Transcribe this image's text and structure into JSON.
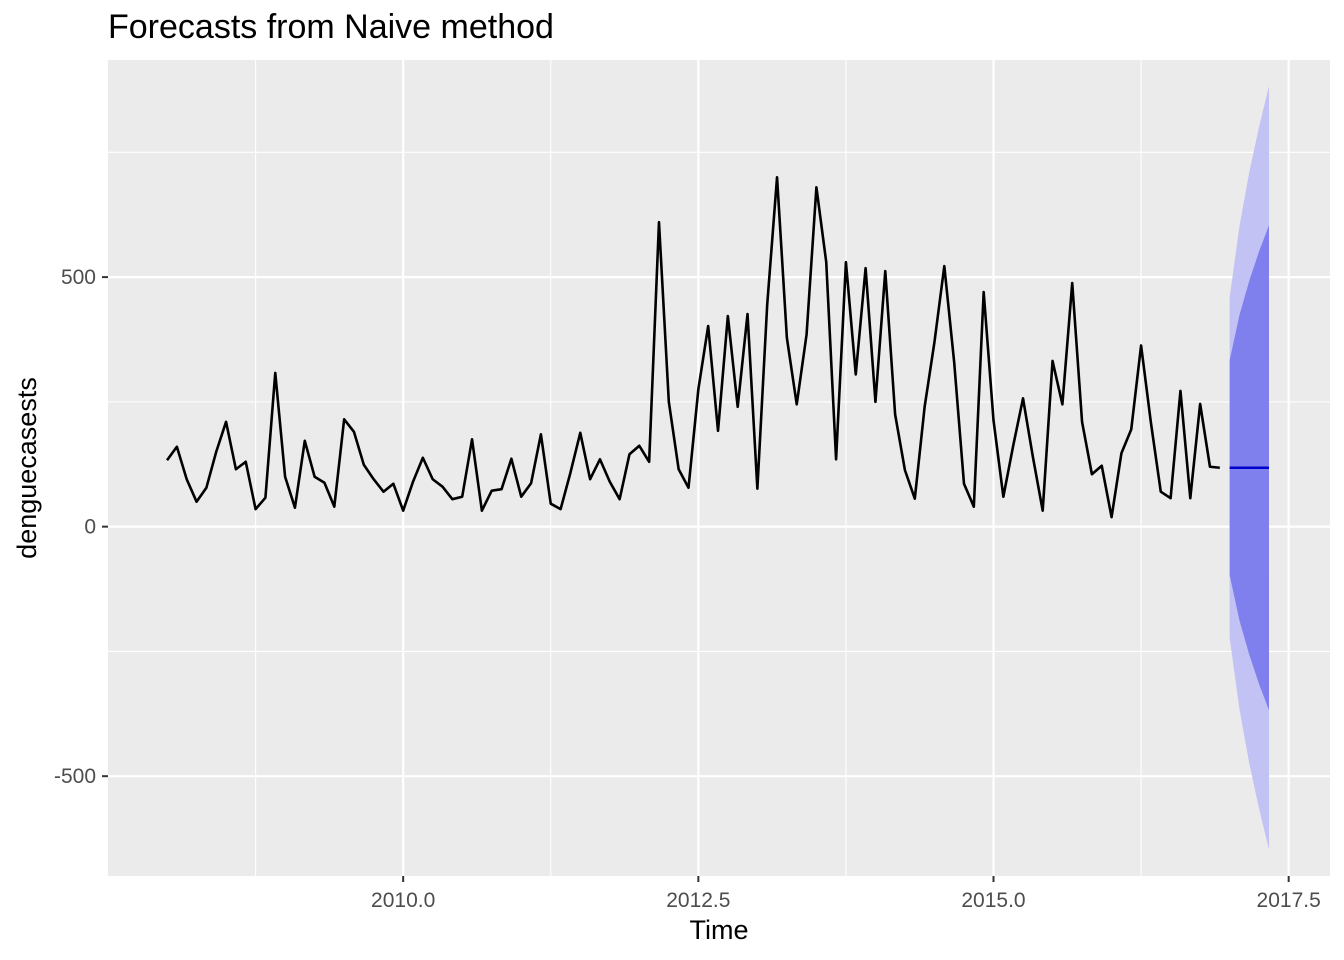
{
  "chart_data": {
    "type": "line",
    "title": "Forecasts from Naive method",
    "xlabel": "Time",
    "ylabel": "denguecasests",
    "xlim": [
      2007.5,
      2017.85
    ],
    "ylim": [
      -700,
      935
    ],
    "x_ticks": [
      2010.0,
      2012.5,
      2015.0,
      2017.5
    ],
    "x_tick_labels": [
      "2010.0",
      "2012.5",
      "2015.0",
      "2017.5"
    ],
    "y_ticks": [
      -500,
      0,
      500
    ],
    "y_tick_labels": [
      "-500",
      "0",
      "500"
    ],
    "grid": true,
    "legend": "none",
    "colors": {
      "panel": "#ebebeb",
      "grid": "#ffffff",
      "series": "#000000",
      "forecast": "#0000cc",
      "band80": "#7f7fee",
      "band95": "#c2c2f4"
    },
    "series": [
      {
        "start_year": 2008,
        "start_period": 1,
        "frequency": 12,
        "values": [
          133,
          160,
          95,
          50,
          78,
          150,
          210,
          115,
          130,
          35,
          58,
          308,
          100,
          38,
          172,
          100,
          88,
          40,
          215,
          190,
          124,
          95,
          70,
          86,
          32,
          90,
          138,
          95,
          80,
          55,
          60,
          175,
          32,
          72,
          75,
          136,
          60,
          87,
          185,
          46,
          35,
          108,
          188,
          95,
          135,
          90,
          55,
          145,
          162,
          130,
          610,
          250,
          115,
          78,
          275,
          402,
          192,
          422,
          240,
          426,
          76,
          445,
          700,
          378,
          245,
          385,
          680,
          530,
          135,
          530,
          305,
          518,
          250,
          512,
          225,
          113,
          56,
          240,
          370,
          522,
          330,
          86,
          40,
          470,
          213,
          60,
          162,
          257,
          140,
          32,
          332,
          245,
          488,
          210,
          105,
          122,
          19,
          147,
          195,
          363,
          208,
          70,
          57,
          272,
          57,
          246,
          120,
          118
        ]
      }
    ],
    "forecast": {
      "x": [
        2017.0,
        2017.0833,
        2017.1667,
        2017.25,
        2017.3333
      ],
      "mean": [
        118,
        118,
        118,
        118,
        118
      ],
      "lo80": [
        -97,
        -188,
        -257,
        -316,
        -368
      ],
      "hi80": [
        333,
        424,
        493,
        552,
        604
      ],
      "lo95": [
        -223,
        -366,
        -475,
        -566,
        -647
      ],
      "hi95": [
        459,
        602,
        711,
        802,
        883
      ]
    }
  }
}
